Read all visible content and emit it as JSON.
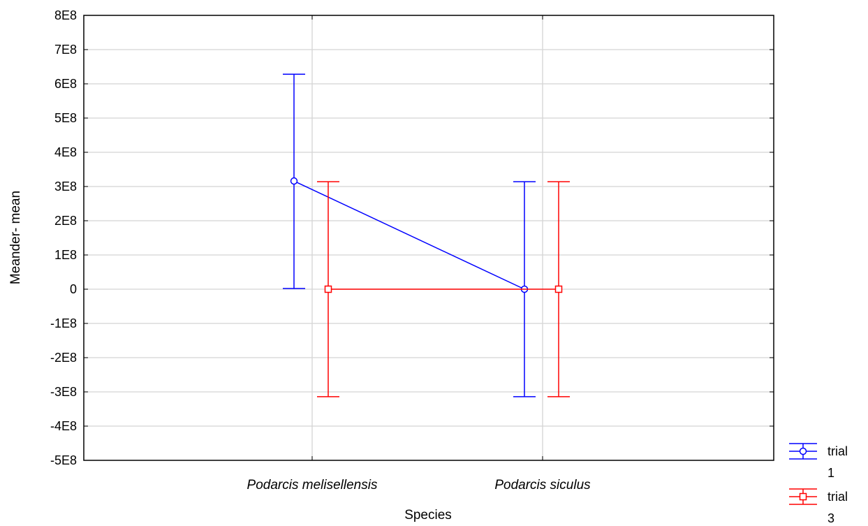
{
  "chart_data": {
    "type": "line",
    "title": "",
    "xlabel": "Species",
    "ylabel": "Meander- mean",
    "categories": [
      "Podarcis melisellensis",
      "Podarcis siculus"
    ],
    "y_tick_labels": [
      "-5E8",
      "-4E8",
      "-3E8",
      "-2E8",
      "-1E8",
      "0",
      "1E8",
      "2E8",
      "3E8",
      "4E8",
      "5E8",
      "6E8",
      "7E8",
      "8E8"
    ],
    "ylim": [
      -500000000,
      800000000
    ],
    "grid": true,
    "legend_position": "bottom-right",
    "series": [
      {
        "name": "trial 1",
        "legend_lines": [
          "trial",
          "1"
        ],
        "color": "#0000ff",
        "marker": "circle",
        "values": [
          316000000,
          0
        ],
        "lower": [
          2000000,
          -314000000
        ],
        "upper": [
          628000000,
          314000000
        ]
      },
      {
        "name": "trial 3",
        "legend_lines": [
          "trial",
          "3"
        ],
        "color": "#ff0000",
        "marker": "square",
        "values": [
          0,
          0
        ],
        "lower": [
          -314000000,
          -314000000
        ],
        "upper": [
          314000000,
          314000000
        ]
      }
    ]
  }
}
